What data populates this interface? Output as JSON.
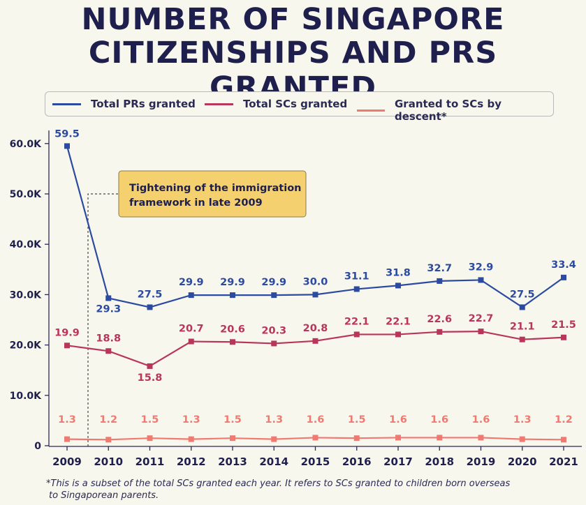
{
  "title_line1": "NUMBER OF SINGAPORE",
  "title_line2": "CITIZENSHIPS AND PRS GRANTED",
  "legend": [
    {
      "label": "Total PRs granted",
      "color": "#2b4aa0"
    },
    {
      "label": "Total SCs granted",
      "color": "#b8365a"
    },
    {
      "label": "Granted to SCs by descent*",
      "color": "#ef7a72"
    }
  ],
  "annotation": {
    "line1": "Tightening of the immigration",
    "line2": "framework in late 2009",
    "fill": "#f5d06f"
  },
  "footnote_line1": "*This is a subset of the total SCs granted each year. It refers to SCs granted to children born overseas",
  "footnote_line2": "to Singaporean parents.",
  "chart_data": {
    "type": "line",
    "categories": [
      "2009",
      "2010",
      "2011",
      "2012",
      "2013",
      "2014",
      "2015",
      "2016",
      "2017",
      "2018",
      "2019",
      "2020",
      "2021"
    ],
    "ytick_labels": [
      "0",
      "10.0K",
      "20.0K",
      "30.0K",
      "40.0K",
      "50.0K",
      "60.0K"
    ],
    "ytick_values": [
      0,
      10,
      20,
      30,
      40,
      50,
      60
    ],
    "ylim": [
      0,
      60
    ],
    "grid": false,
    "legend_position": "top",
    "series": [
      {
        "name": "Total PRs granted",
        "color": "#2b4aa0",
        "values": [
          59.5,
          29.3,
          27.5,
          29.9,
          29.9,
          29.9,
          30.0,
          31.1,
          31.8,
          32.7,
          32.9,
          27.5,
          33.4
        ],
        "labels": [
          "59.5",
          "29.3",
          "27.5",
          "29.9",
          "29.9",
          "29.9",
          "30.0",
          "31.1",
          "31.8",
          "32.7",
          "32.9",
          "27.5",
          "33.4"
        ]
      },
      {
        "name": "Total SCs granted",
        "color": "#b8365a",
        "values": [
          19.9,
          18.8,
          15.8,
          20.7,
          20.6,
          20.3,
          20.8,
          22.1,
          22.1,
          22.6,
          22.7,
          21.1,
          21.5
        ],
        "labels": [
          "19.9",
          "18.8",
          "15.8",
          "20.7",
          "20.6",
          "20.3",
          "20.8",
          "22.1",
          "22.1",
          "22.6",
          "22.7",
          "21.1",
          "21.5"
        ]
      },
      {
        "name": "Granted to SCs by descent*",
        "color": "#ef7a72",
        "values": [
          1.3,
          1.2,
          1.5,
          1.3,
          1.5,
          1.3,
          1.6,
          1.5,
          1.6,
          1.6,
          1.6,
          1.3,
          1.2
        ],
        "labels": [
          "1.3",
          "1.2",
          "1.5",
          "1.3",
          "1.5",
          "1.3",
          "1.6",
          "1.5",
          "1.6",
          "1.6",
          "1.6",
          "1.3",
          "1.2"
        ]
      }
    ]
  }
}
